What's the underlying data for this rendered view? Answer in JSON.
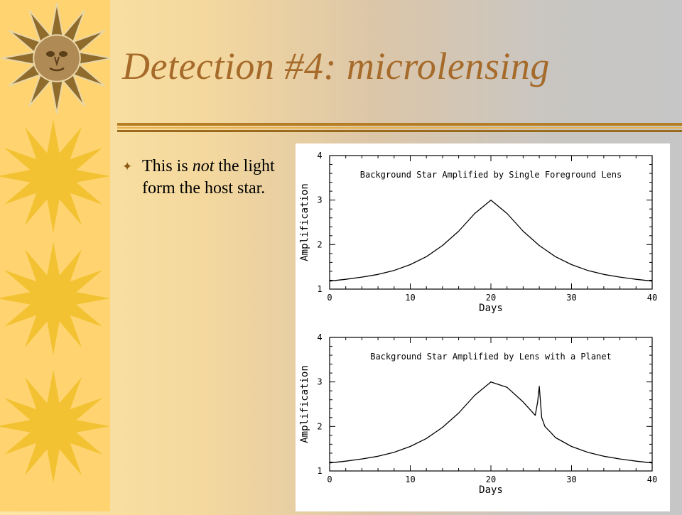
{
  "slide": {
    "title": "Detection #4: microlensing",
    "bullet": {
      "before": "This is ",
      "emphasis": "not",
      "after": " the light form the host star."
    }
  },
  "colors": {
    "title": "#a66b2a",
    "sidebar": "#ffd470",
    "sun_light": "#f2c233",
    "sun_medallion": "#b08a55",
    "rule_dark": "#9a6a1d",
    "rule_light": "#e8b14a"
  },
  "icons": {
    "bullet": "star-bullet-icon",
    "sidebar": "sun-icon"
  },
  "chart_data": [
    {
      "type": "line",
      "title": "Background Star Amplified by Single Foreground Lens",
      "xlabel": "Days",
      "ylabel": "Amplification",
      "xlim": [
        0,
        40
      ],
      "ylim": [
        1,
        4
      ],
      "xticks": [
        0,
        10,
        20,
        30,
        40
      ],
      "yticks": [
        1,
        2,
        3,
        4
      ],
      "x": [
        0,
        2,
        4,
        6,
        8,
        10,
        12,
        14,
        16,
        18,
        20,
        22,
        24,
        26,
        28,
        30,
        32,
        34,
        36,
        38,
        40
      ],
      "y": [
        1.18,
        1.22,
        1.27,
        1.33,
        1.42,
        1.55,
        1.73,
        1.98,
        2.3,
        2.7,
        3.0,
        2.7,
        2.3,
        1.98,
        1.73,
        1.55,
        1.42,
        1.33,
        1.27,
        1.22,
        1.18
      ]
    },
    {
      "type": "line",
      "title": "Background Star Amplified by Lens with a Planet",
      "xlabel": "Days",
      "ylabel": "Amplification",
      "xlim": [
        0,
        40
      ],
      "ylim": [
        1,
        4
      ],
      "xticks": [
        0,
        10,
        20,
        30,
        40
      ],
      "yticks": [
        1,
        2,
        3,
        4
      ],
      "x": [
        0,
        2,
        4,
        6,
        8,
        10,
        12,
        14,
        16,
        18,
        20,
        22,
        24,
        25,
        25.5,
        25.8,
        26,
        26.3,
        26.7,
        27.5,
        28,
        30,
        32,
        34,
        36,
        38,
        40
      ],
      "y": [
        1.18,
        1.22,
        1.27,
        1.33,
        1.42,
        1.55,
        1.73,
        1.98,
        2.3,
        2.7,
        3.0,
        2.88,
        2.55,
        2.35,
        2.25,
        2.55,
        2.9,
        2.2,
        2.0,
        1.85,
        1.75,
        1.55,
        1.42,
        1.33,
        1.27,
        1.22,
        1.18
      ]
    }
  ]
}
